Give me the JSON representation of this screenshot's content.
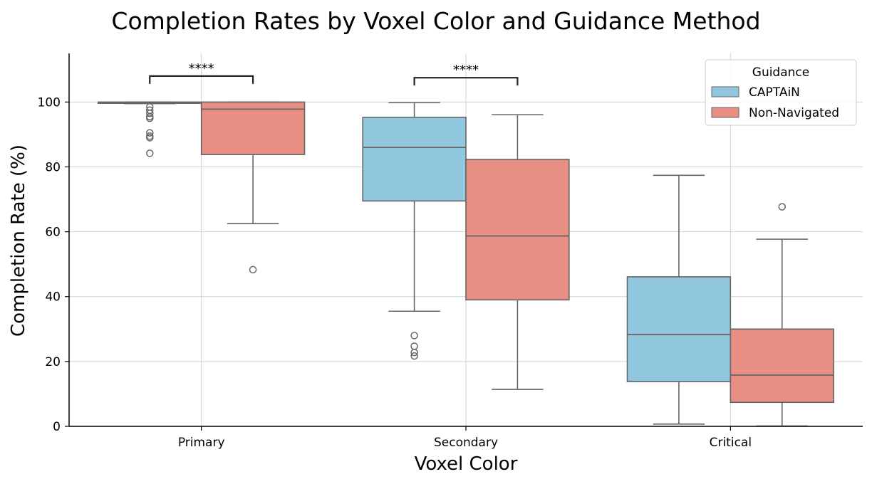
{
  "chart_data": {
    "type": "box",
    "title": "Completion Rates by Voxel Color and Guidance Method",
    "xlabel": "Voxel Color",
    "ylabel": "Completion Rate (%)",
    "ylim": [
      0,
      115
    ],
    "yticks": [
      "0",
      "20",
      "40",
      "60",
      "80",
      "100"
    ],
    "ytick_values": [
      0,
      20,
      40,
      60,
      80,
      100
    ],
    "categories": [
      "Primary",
      "Secondary",
      "Critical"
    ],
    "grid": true,
    "legend": {
      "title": "Guidance",
      "position": "top-right"
    },
    "series": [
      {
        "name": "CAPTAiN",
        "color": "#92C8DF",
        "boxes": [
          {
            "whisker_low": 99.5,
            "q1": 99.6,
            "median": 99.8,
            "q3": 100,
            "whisker_high": 100,
            "outliers": [
              98.5,
              97.5,
              96.5,
              95.5,
              95.0,
              90.5,
              89.5,
              89.0,
              84.2
            ]
          },
          {
            "whisker_low": 35.5,
            "q1": 69.5,
            "median": 86.0,
            "q3": 95.3,
            "whisker_high": 99.8,
            "outliers": [
              28.0,
              24.7,
              22.8,
              21.7
            ]
          },
          {
            "whisker_low": 0.7,
            "q1": 13.8,
            "median": 28.3,
            "q3": 46.1,
            "whisker_high": 77.4,
            "outliers": []
          }
        ]
      },
      {
        "name": "Non-Navigated",
        "color": "#E88E82",
        "boxes": [
          {
            "whisker_low": 62.5,
            "q1": 83.8,
            "median": 97.8,
            "q3": 100,
            "whisker_high": 100,
            "outliers": [
              48.3
            ]
          },
          {
            "whisker_low": 11.4,
            "q1": 39.0,
            "median": 58.7,
            "q3": 82.3,
            "whisker_high": 96.1,
            "outliers": []
          },
          {
            "whisker_low": 0.1,
            "q1": 7.4,
            "median": 15.8,
            "q3": 30.0,
            "whisker_high": 57.7,
            "outliers": [
              67.7
            ]
          }
        ]
      }
    ],
    "annotations": [
      {
        "category_index": 0,
        "text": "****",
        "y": 108
      },
      {
        "category_index": 1,
        "text": "****",
        "y": 107.5
      }
    ],
    "colors": {
      "box_edge": "#666666",
      "grid": "#d0d0d0",
      "axis": "#000000"
    }
  }
}
